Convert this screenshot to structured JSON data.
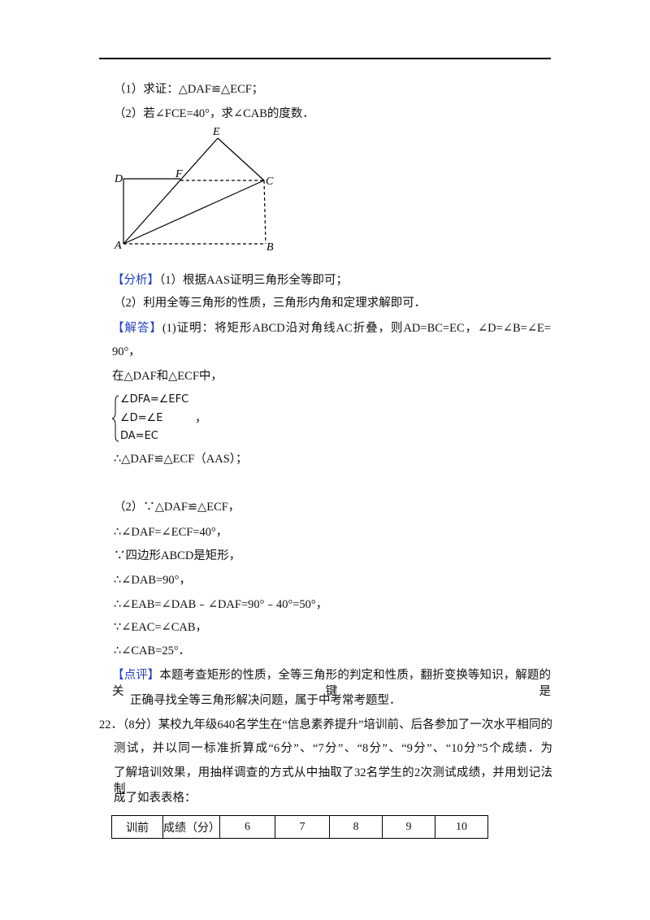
{
  "question_parts": [
    "（1）求证：△DAF≌△ECF；",
    "（2）若∠FCE=40°，求∠CAB的度数．"
  ],
  "diagram": {
    "labels": [
      "E",
      "D",
      "F",
      "C",
      "A",
      "B"
    ]
  },
  "analysis": {
    "tag": "【分析】",
    "lines": [
      "（1）根据AAS证明三角形全等即可；",
      "（2）利用全等三角形的性质，三角形内角和定理求解即可．"
    ]
  },
  "solution": {
    "tag": "【解答】",
    "first_line": "(1)证明：将矩形ABCD沿对角线AC折叠，则AD=BC=EC，∠D=∠B=∠E=",
    "lines": [
      "90°，",
      "在△DAF和△ECF中，"
    ],
    "system": [
      "∠DFA=∠EFC",
      "∠D=∠E",
      "DA=EC"
    ],
    "system_suffix": "，",
    "lines2": [
      "∴△DAF≌△ECF（AAS）；",
      "（2）∵△DAF≌△ECF，",
      "∴∠DAF=∠ECF=40°，",
      "∵四边形ABCD是矩形，",
      "∴∠DAB=90°，",
      "∴∠EAB=∠DAB﹣∠DAF=90°﹣40°=50°，",
      "∵∠EAC=∠CAB，",
      "∴∠CAB=25°．"
    ]
  },
  "comment": {
    "tag": "【点评】",
    "lines": [
      "本题考查矩形的性质，全等三角形的判定和性质，翻折变换等知识，解题的关键是",
      "正确寻找全等三角形解决问题，属于中考常考题型．"
    ]
  },
  "question22": {
    "lines": [
      "22．（8分）某校九年级640名学生在“信息素养提升”培训前、后各参加了一次水平相同的",
      "测试，并以同一标准折算成“6分”、“7分”、“8分”、“9分”、“10分”5个成绩．为",
      "了解培训效果，用抽样调查的方式从中抽取了32名学生的2次测试成绩，并用划记法制",
      "成了如表表格："
    ]
  },
  "table": {
    "rows": [
      [
        "训前",
        "成绩（分）",
        "6",
        "7",
        "8",
        "9",
        "10"
      ]
    ]
  }
}
